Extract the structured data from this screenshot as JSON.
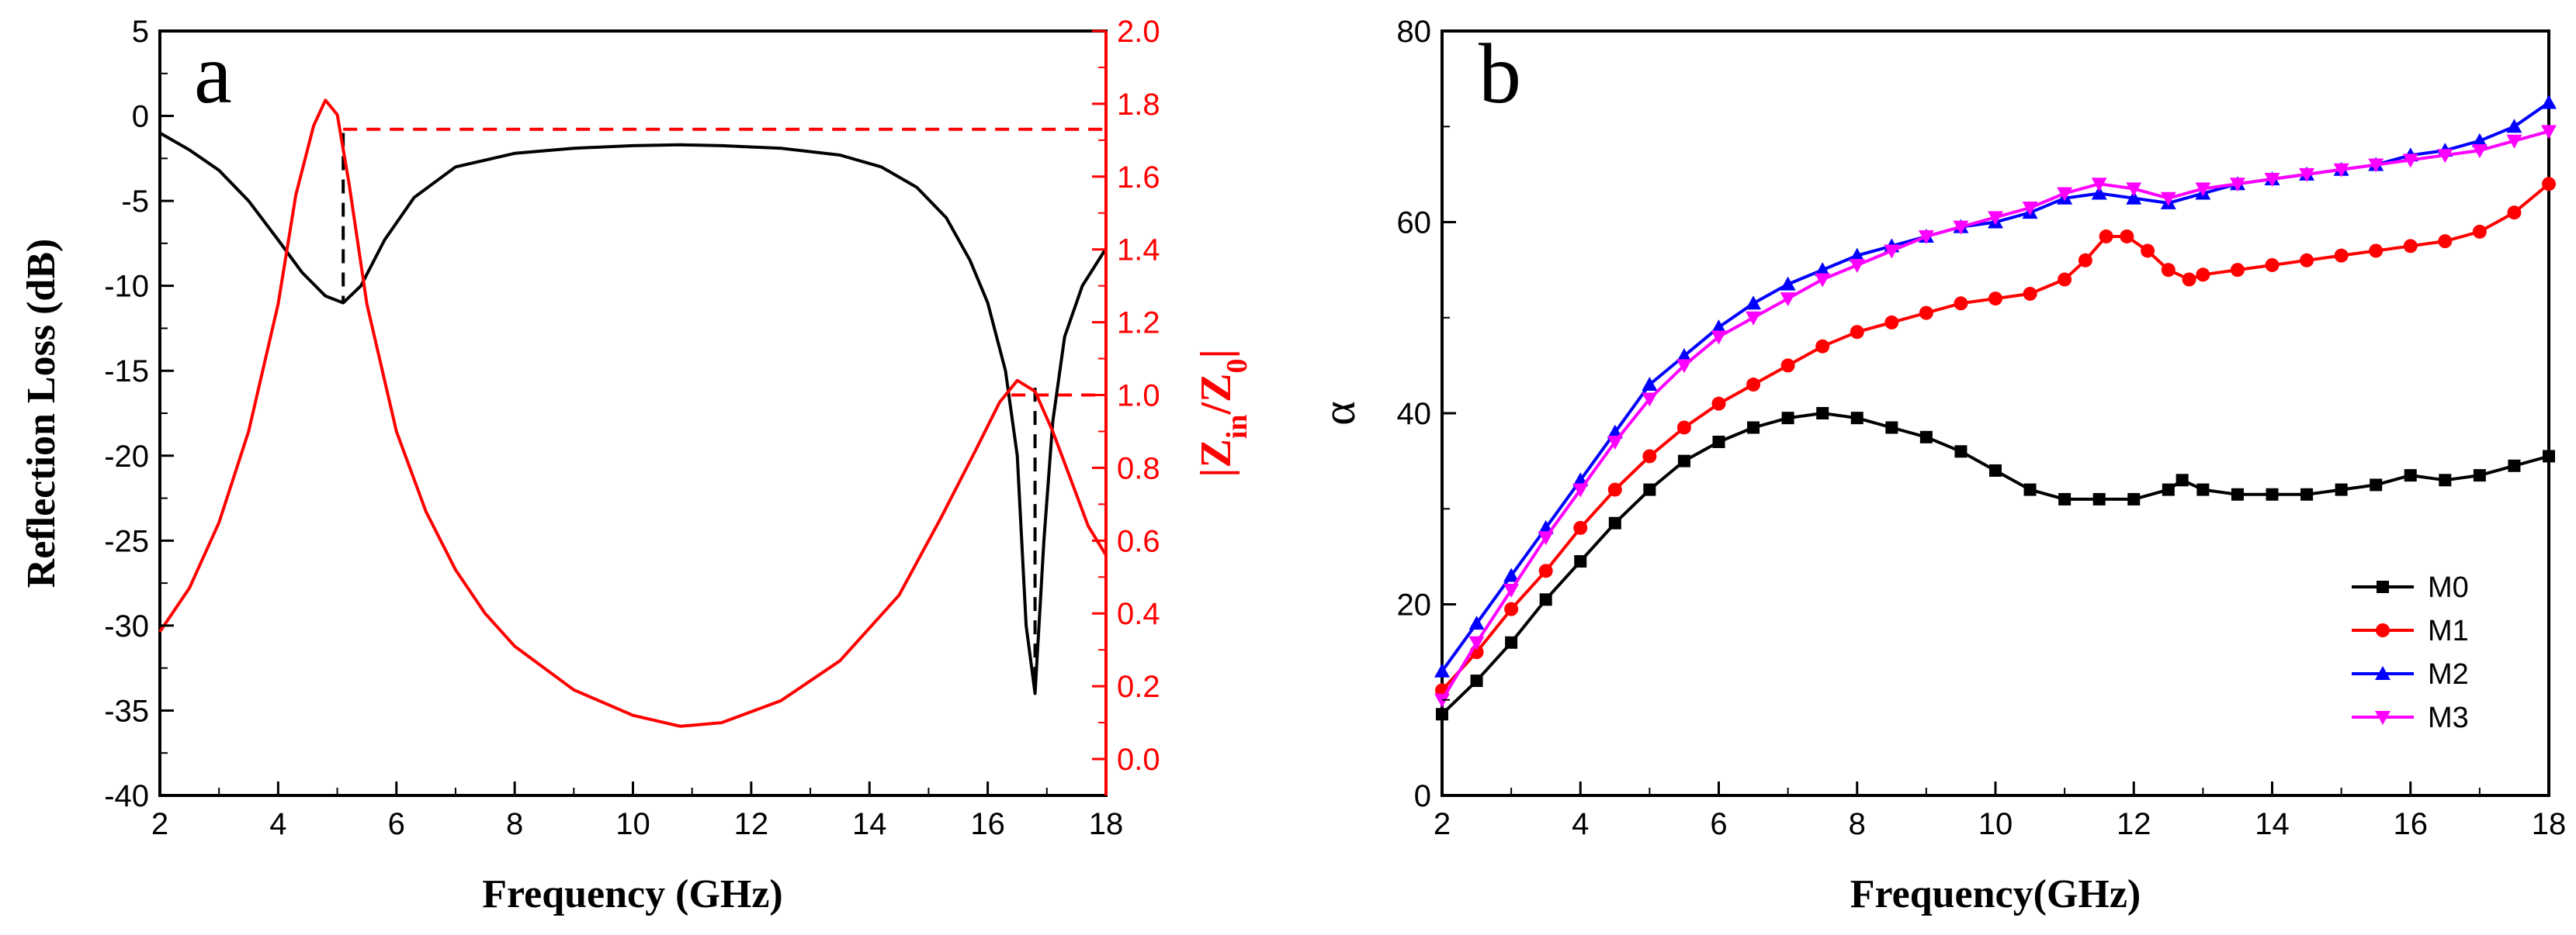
{
  "chart_data": [
    {
      "type": "line",
      "panel_label": "a",
      "xlabel": "Frequency (GHz)",
      "ylabel": "Reflection Loss (dB)",
      "y2label_parts": [
        "|Z",
        "in",
        "/Z",
        "0",
        "|"
      ],
      "xlim": [
        2,
        18
      ],
      "ylim": [
        -40,
        5
      ],
      "y2lim": [
        -0.1,
        2.0
      ],
      "x_ticks": [
        "2",
        "4",
        "6",
        "8",
        "10",
        "12",
        "14",
        "16",
        "18"
      ],
      "y_ticks": [
        "5",
        "0",
        "-5",
        "-10",
        "-15",
        "-20",
        "-25",
        "-30",
        "-35",
        "-40"
      ],
      "y2_ticks": [
        "2.0",
        "1.8",
        "1.6",
        "1.4",
        "1.2",
        "1.0",
        "0.8",
        "0.6",
        "0.4",
        "0.2",
        "0.0"
      ],
      "series": [
        {
          "name": "Reflection Loss",
          "axis": "left",
          "color": "#000000",
          "x": [
            2.0,
            2.5,
            3.0,
            3.5,
            4.0,
            4.4,
            4.8,
            5.1,
            5.4,
            5.8,
            6.3,
            7.0,
            8.0,
            9.0,
            10.0,
            10.8,
            11.5,
            12.5,
            13.5,
            14.2,
            14.8,
            15.3,
            15.7,
            16.0,
            16.3,
            16.5,
            16.65,
            16.8,
            16.95,
            17.1,
            17.3,
            17.6,
            18.0
          ],
          "values": [
            -1.0,
            -2.0,
            -3.2,
            -5.0,
            -7.3,
            -9.2,
            -10.6,
            -11.0,
            -10.0,
            -7.3,
            -4.8,
            -3.0,
            -2.2,
            -1.9,
            -1.75,
            -1.7,
            -1.75,
            -1.9,
            -2.3,
            -3.0,
            -4.2,
            -6.0,
            -8.5,
            -11.0,
            -15.0,
            -20.0,
            -30.0,
            -34.0,
            -25.0,
            -18.0,
            -13.0,
            -10.0,
            -7.8
          ]
        },
        {
          "name": "|Zin/Z0|",
          "axis": "right",
          "color": "#ff0000",
          "x": [
            2.0,
            2.5,
            3.0,
            3.5,
            4.0,
            4.3,
            4.6,
            4.8,
            5.0,
            5.2,
            5.5,
            6.0,
            6.5,
            7.0,
            7.5,
            8.0,
            9.0,
            10.0,
            10.8,
            11.5,
            12.5,
            13.5,
            14.5,
            15.2,
            15.8,
            16.2,
            16.5,
            16.8,
            17.1,
            17.4,
            17.7,
            18.0
          ],
          "values": [
            0.35,
            0.47,
            0.65,
            0.9,
            1.25,
            1.55,
            1.74,
            1.81,
            1.77,
            1.58,
            1.25,
            0.9,
            0.68,
            0.52,
            0.4,
            0.31,
            0.19,
            0.12,
            0.09,
            0.1,
            0.16,
            0.27,
            0.45,
            0.66,
            0.85,
            0.98,
            1.04,
            1.01,
            0.9,
            0.77,
            0.64,
            0.56
          ]
        }
      ],
      "reference_lines": [
        {
          "orientation": "horizontal",
          "axis": "right",
          "value": 1.73,
          "x_from": 5.1,
          "x_to": 18.0,
          "color": "#ff0000"
        },
        {
          "orientation": "horizontal",
          "axis": "right",
          "value": 1.0,
          "x_from": 16.4,
          "x_to": 18.0,
          "color": "#ff0000"
        },
        {
          "orientation": "vertical",
          "x": 5.1,
          "y_from": -1.0,
          "y_to": -11.0,
          "color": "#000000"
        },
        {
          "orientation": "vertical",
          "x": 16.8,
          "y_from": -16.0,
          "y_to": -33.0,
          "color": "#000000"
        }
      ]
    },
    {
      "type": "line",
      "panel_label": "b",
      "xlabel": "Frequency(GHz)",
      "ylabel": "α",
      "xlim": [
        2,
        18
      ],
      "ylim": [
        0,
        80
      ],
      "x_ticks": [
        "2",
        "4",
        "6",
        "8",
        "10",
        "12",
        "14",
        "16",
        "18"
      ],
      "y_ticks": [
        "0",
        "20",
        "40",
        "60",
        "80"
      ],
      "legend_position": "bottom-right",
      "series": [
        {
          "name": "M0",
          "color": "#000000",
          "marker": "square",
          "x": [
            2,
            2.5,
            3,
            3.5,
            4,
            4.5,
            5,
            5.5,
            6,
            6.5,
            7,
            7.5,
            8,
            8.5,
            9,
            9.5,
            10,
            10.5,
            11,
            11.5,
            12,
            12.5,
            12.7,
            13,
            13.5,
            14,
            14.5,
            15,
            15.5,
            16,
            16.5,
            17,
            17.5,
            18
          ],
          "values": [
            8.5,
            12,
            16,
            20.5,
            24.5,
            28.5,
            32,
            35,
            37,
            38.5,
            39.5,
            40,
            39.5,
            38.5,
            37.5,
            36,
            34,
            32,
            31,
            31,
            31,
            32,
            33,
            32,
            31.5,
            31.5,
            31.5,
            32,
            32.5,
            33.5,
            33,
            33.5,
            34.5,
            35.5
          ]
        },
        {
          "name": "M1",
          "color": "#ff0000",
          "marker": "circle",
          "x": [
            2,
            2.5,
            3,
            3.5,
            4,
            4.5,
            5,
            5.5,
            6,
            6.5,
            7,
            7.5,
            8,
            8.5,
            9,
            9.5,
            10,
            10.5,
            11,
            11.3,
            11.6,
            11.9,
            12.2,
            12.5,
            12.8,
            13,
            13.5,
            14,
            14.5,
            15,
            15.5,
            16,
            16.5,
            17,
            17.5,
            18
          ],
          "values": [
            11,
            15,
            19.5,
            23.5,
            28,
            32,
            35.5,
            38.5,
            41,
            43,
            45,
            47,
            48.5,
            49.5,
            50.5,
            51.5,
            52,
            52.5,
            54,
            56,
            58.5,
            58.5,
            57,
            55,
            54,
            54.5,
            55,
            55.5,
            56,
            56.5,
            57,
            57.5,
            58,
            59,
            61,
            64
          ]
        },
        {
          "name": "M2",
          "color": "#0000ff",
          "marker": "triangle-up",
          "x": [
            2,
            2.5,
            3,
            3.5,
            4,
            4.5,
            5,
            5.5,
            6,
            6.5,
            7,
            7.5,
            8,
            8.5,
            9,
            9.5,
            10,
            10.5,
            11,
            11.5,
            12,
            12.5,
            13,
            13.5,
            14,
            14.5,
            15,
            15.5,
            16,
            16.5,
            17,
            17.5,
            18
          ],
          "values": [
            13,
            18,
            23,
            28,
            33,
            38,
            43,
            46,
            49,
            51.5,
            53.5,
            55,
            56.5,
            57.5,
            58.5,
            59.5,
            60,
            61,
            62.5,
            63,
            62.5,
            62,
            63,
            64,
            64.5,
            65,
            65.5,
            66,
            67,
            67.5,
            68.5,
            70,
            72.5
          ]
        },
        {
          "name": "M3",
          "color": "#ff00ff",
          "marker": "triangle-down",
          "x": [
            2,
            2.5,
            3,
            3.5,
            4,
            4.5,
            5,
            5.5,
            6,
            6.5,
            7,
            7.5,
            8,
            8.5,
            9,
            9.5,
            10,
            10.5,
            11,
            11.5,
            12,
            12.5,
            13,
            13.5,
            14,
            14.5,
            15,
            15.5,
            16,
            16.5,
            17,
            17.5,
            18
          ],
          "values": [
            10,
            16,
            21.5,
            27,
            32,
            37,
            41.5,
            45,
            48,
            50,
            52,
            54,
            55.5,
            57,
            58.5,
            59.5,
            60.5,
            61.5,
            63,
            64,
            63.5,
            62.5,
            63.5,
            64,
            64.5,
            65,
            65.5,
            66,
            66.5,
            67,
            67.5,
            68.5,
            69.5
          ]
        }
      ]
    }
  ]
}
